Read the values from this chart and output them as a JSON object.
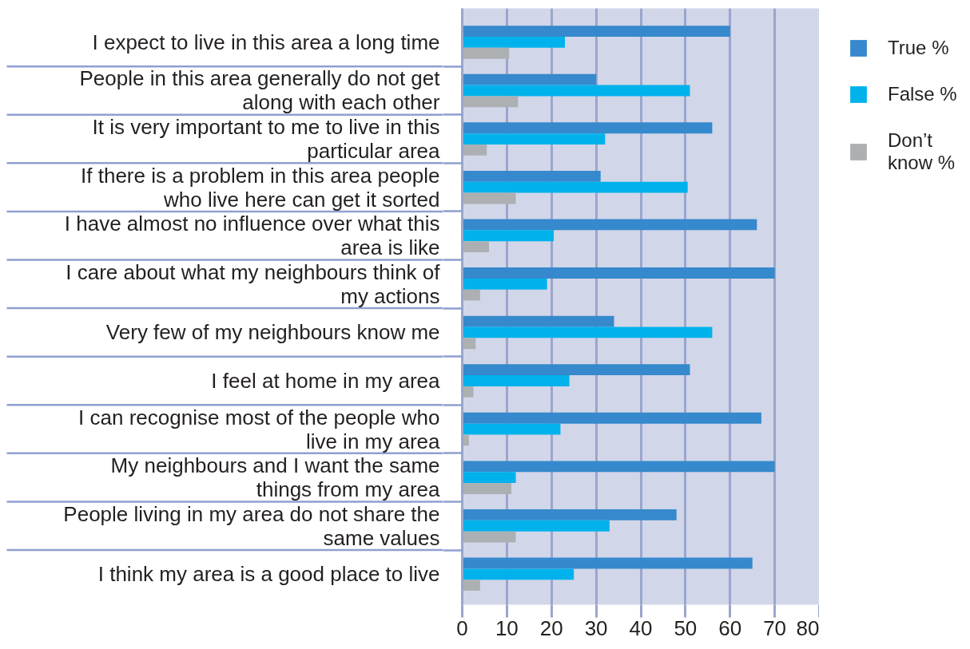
{
  "chart_data": {
    "type": "bar",
    "orientation": "horizontal",
    "categories": [
      "I expect to live in this area a long time",
      "People in this area generally do not get along with each other",
      "It is very important to me to live in this particular area",
      "If there is a problem in this area people who live here can get it sorted",
      "I have almost no influence over what this area is like",
      "I care about what my neighbours think of my actions",
      "Very few of my neighbours know me",
      "I feel at home in my area",
      "I can recognise most of the people who live in my area",
      "My neighbours and I want the same things from my area",
      "People living in my area do not share the same values",
      "I think my area is a good place to live"
    ],
    "series": [
      {
        "name": "True %",
        "color": "#3589cc",
        "values": [
          60,
          30,
          56,
          31,
          66,
          70,
          34,
          51,
          67,
          70,
          48,
          65
        ]
      },
      {
        "name": "False %",
        "color": "#00b2ec",
        "values": [
          23,
          51,
          32,
          50.5,
          20.5,
          19,
          56,
          24,
          22,
          12,
          33,
          25
        ]
      },
      {
        "name": "Don’t know %",
        "color": "#adb0b3",
        "values": [
          10.5,
          12.5,
          5.5,
          12,
          6,
          4,
          3,
          2.5,
          1.5,
          11,
          12,
          4
        ]
      }
    ],
    "xlim": [
      0,
      80
    ],
    "xticks": [
      0,
      10,
      20,
      30,
      40,
      50,
      60,
      70,
      80
    ],
    "grid": "x",
    "legend": "top right"
  }
}
